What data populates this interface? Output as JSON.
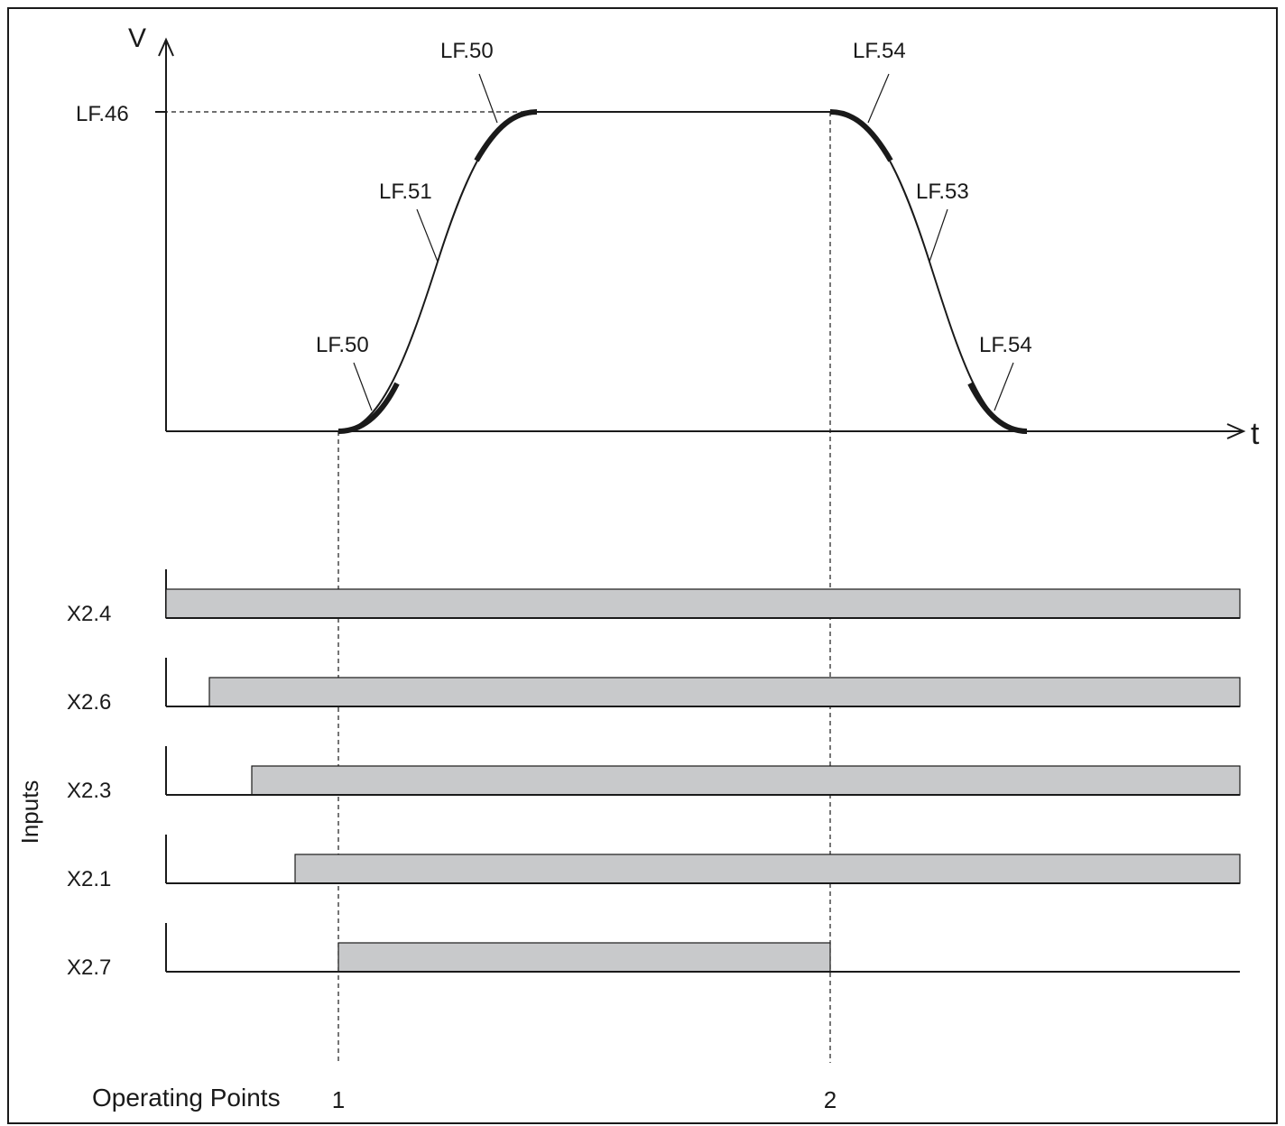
{
  "axes": {
    "y_label": "V",
    "x_label": "t",
    "level_label": "LF.46"
  },
  "curve_labels": {
    "accel_top_jerk": "LF.50",
    "accel_ramp": "LF.51",
    "accel_bottom_jerk": "LF.50",
    "decel_top_jerk": "LF.54",
    "decel_ramp": "LF.53",
    "decel_bottom_jerk": "LF.54"
  },
  "inputs": {
    "title": "Inputs",
    "signals": [
      {
        "name": "X2.4",
        "on": 0.0,
        "off": 1.0
      },
      {
        "name": "X2.6",
        "on": 0.04,
        "off": 1.0
      },
      {
        "name": "X2.3",
        "on": 0.08,
        "off": 1.0
      },
      {
        "name": "X2.1",
        "on": 0.12,
        "off": 1.0
      },
      {
        "name": "X2.7",
        "on": 0.16,
        "off": 0.62
      }
    ]
  },
  "operating_points": {
    "label": "Operating Points",
    "points": [
      "1",
      "2"
    ]
  },
  "colors": {
    "line": "#1a1a1a",
    "bar_fill": "#c8c9cb",
    "background": "#ffffff"
  }
}
